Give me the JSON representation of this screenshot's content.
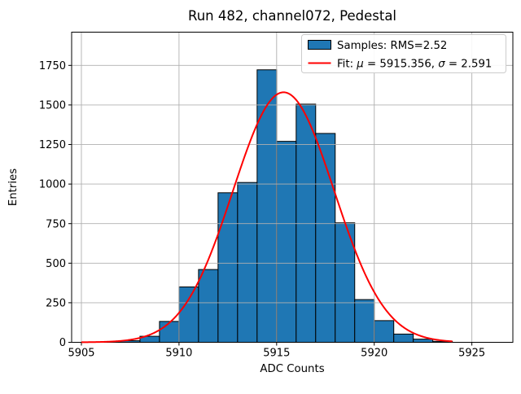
{
  "title": "Run 482, channel072, Pedestal",
  "chart_data": {
    "type": "bar",
    "subtype": "histogram-with-gaussian-fit",
    "title": "Run 482, channel072, Pedestal",
    "xlabel": "ADC Counts",
    "ylabel": "Entries",
    "xlim": [
      5904.5,
      5927.1
    ],
    "ylim": [
      0,
      1960
    ],
    "xticks": [
      5905,
      5910,
      5915,
      5920,
      5925
    ],
    "yticks": [
      0,
      250,
      500,
      750,
      1000,
      1250,
      1500,
      1750
    ],
    "grid": true,
    "grid_above_bars": true,
    "bin_width": 1,
    "bin_edges": [
      5907,
      5908,
      5909,
      5910,
      5911,
      5912,
      5913,
      5914,
      5915,
      5916,
      5917,
      5918,
      5919,
      5920,
      5921,
      5922,
      5923,
      5924
    ],
    "counts": [
      10,
      38,
      132,
      350,
      460,
      945,
      1010,
      1722,
      1270,
      1505,
      1320,
      755,
      270,
      137,
      52,
      20,
      6
    ],
    "fit": {
      "mu": 5915.356,
      "sigma": 2.591,
      "amplitude": 1580,
      "x_range": [
        5905.0,
        5924.0
      ]
    },
    "legend": {
      "samples_label": "Samples: RMS=2.52",
      "fit_label_full": "Fit: μ = 5915.356, σ = 2.591",
      "fit_prefix": "Fit: ",
      "mu_symbol": "μ",
      "fit_mid": " = 5915.356, ",
      "sigma_symbol": "σ",
      "fit_end": " = 2.591",
      "position": "upper right"
    },
    "colors": {
      "bar_fill": "#1f77b4",
      "bar_edge": "#000000",
      "fit_line": "#ff0000",
      "grid": "#b0b0b0",
      "spine": "#000000",
      "legend_border": "#cccccc",
      "background": "#ffffff"
    }
  }
}
